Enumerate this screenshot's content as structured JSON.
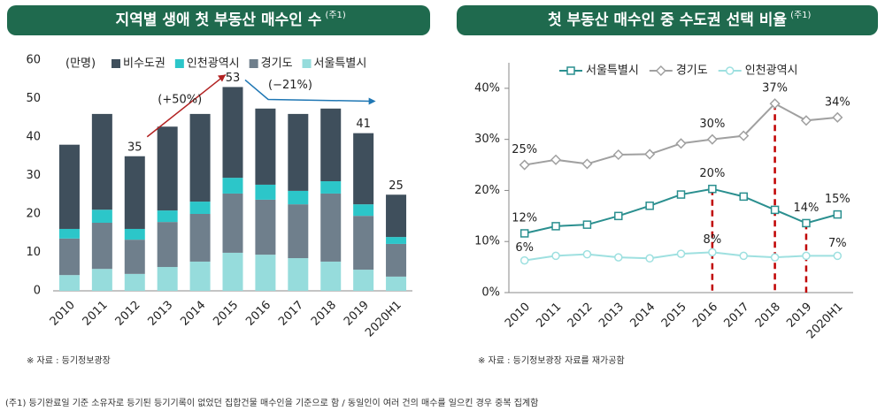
{
  "chart_data": [
    {
      "type": "bar",
      "stacked": true,
      "title": "지역별 생애 첫 부동산 매수인 수",
      "title_note": "(주1)",
      "unit": "(만명)",
      "categories": [
        "2010",
        "2011",
        "2012",
        "2013",
        "2014",
        "2015",
        "2016",
        "2017",
        "2018",
        "2019",
        "2020H1"
      ],
      "series": [
        {
          "name": "서울특별시",
          "color": "#96dcdc",
          "values": [
            4.1,
            5.7,
            4.4,
            6.2,
            7.6,
            9.9,
            9.4,
            8.5,
            7.6,
            5.5,
            3.7
          ]
        },
        {
          "name": "경기도",
          "color": "#6f7f8c",
          "values": [
            9.5,
            12.0,
            8.9,
            11.7,
            12.4,
            15.4,
            14.3,
            14.0,
            17.7,
            14.0,
            8.5
          ]
        },
        {
          "name": "인천광역시",
          "color": "#2cc6c9",
          "values": [
            2.5,
            3.4,
            2.8,
            3.0,
            3.2,
            4.1,
            3.9,
            3.5,
            3.2,
            3.0,
            1.8
          ]
        },
        {
          "name": "비수도권",
          "color": "#3f4f5c",
          "values": [
            21.9,
            24.9,
            18.9,
            21.8,
            22.8,
            23.6,
            19.8,
            20.0,
            18.9,
            18.5,
            11.0
          ]
        }
      ],
      "totals": [
        null,
        null,
        35,
        null,
        null,
        53,
        null,
        null,
        null,
        41,
        25
      ],
      "annotations": [
        "(+50%)",
        "(−21%)"
      ],
      "ylim": [
        0,
        60
      ],
      "yticks": [
        0,
        10,
        20,
        30,
        40,
        50,
        60
      ],
      "grid": false,
      "source": "※ 자료 : 등기정보광장"
    },
    {
      "type": "line",
      "title": "첫 부동산 매수인 중 수도권 선택 비율",
      "title_note": "(주1)",
      "categories": [
        "2010",
        "2011",
        "2012",
        "2013",
        "2014",
        "2015",
        "2016",
        "2017",
        "2018",
        "2019",
        "2020H1"
      ],
      "series": [
        {
          "name": "서울특별시",
          "color": "#2a8f8f",
          "marker": "square",
          "values": [
            11.6,
            13,
            13.3,
            15,
            17,
            19.2,
            20.3,
            18.8,
            16.2,
            13.6,
            15.3
          ],
          "value_labels": [
            "12%",
            null,
            null,
            null,
            null,
            null,
            "20%",
            null,
            null,
            "14%",
            "15%"
          ]
        },
        {
          "name": "경기도",
          "color": "#a0a0a0",
          "marker": "diamond",
          "values": [
            25,
            26,
            25.2,
            27,
            27.1,
            29.2,
            30,
            30.7,
            37,
            33.7,
            34.3
          ],
          "value_labels": [
            "25%",
            null,
            null,
            null,
            null,
            null,
            "30%",
            null,
            "37%",
            null,
            "34%"
          ]
        },
        {
          "name": "인천광역시",
          "color": "#9ee0e0",
          "marker": "circle",
          "values": [
            6.3,
            7.2,
            7.5,
            6.9,
            6.7,
            7.6,
            7.9,
            7.2,
            6.9,
            7.2,
            7.2
          ],
          "value_labels": [
            "6%",
            null,
            null,
            null,
            null,
            null,
            "8%",
            null,
            null,
            null,
            "7%"
          ]
        }
      ],
      "ylim": [
        0,
        45
      ],
      "yticks": [
        {
          "value": 0,
          "label": "0%"
        },
        {
          "value": 10,
          "label": "10%"
        },
        {
          "value": 20,
          "label": "20%"
        },
        {
          "value": 30,
          "label": "30%"
        },
        {
          "value": 40,
          "label": "40%"
        }
      ],
      "grid": false,
      "source": "※ 자료 : 등기정보광장 자료를 재가공함"
    }
  ],
  "footnote": "(주1) 등기완료일 기준 소유자로 등기된 등기기록이 없었던 집합건물 매수인을 기준으로 함 / 동일인이 여러 건의 매수를 일으킨 경우 중복 집계함"
}
